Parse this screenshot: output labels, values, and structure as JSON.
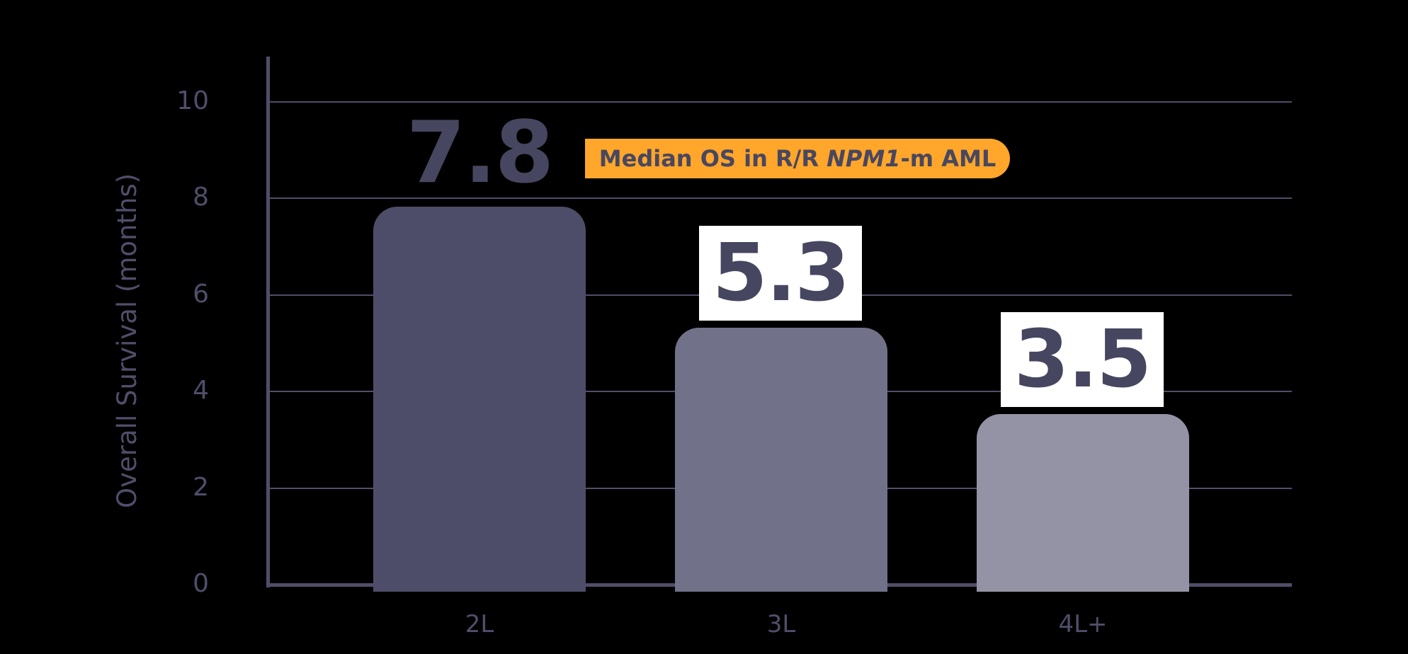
{
  "chart_data": {
    "type": "bar",
    "title": "",
    "annotation": "Median OS in R/R NPM1-m AML",
    "xlabel": "",
    "ylabel": "Overall Survival (months)",
    "ylim": [
      0,
      10
    ],
    "yticks": [
      0,
      2,
      4,
      6,
      8,
      10
    ],
    "grid": true,
    "legend": "none",
    "categories": [
      "2L",
      "3L",
      "4L+"
    ],
    "values": [
      7.8,
      5.3,
      3.5
    ],
    "value_labels": [
      "7.8",
      "5.3",
      "3.5"
    ],
    "bar_colors": [
      "#4d4d69",
      "#717189",
      "#9393a5"
    ]
  },
  "badge": {
    "prefix": "Median OS in R/R ",
    "gene": "NPM1",
    "suffix": "-m AML"
  },
  "colors": {
    "accent": "#ffa62b",
    "axis": "#4f4e6a",
    "background": "#000000"
  }
}
